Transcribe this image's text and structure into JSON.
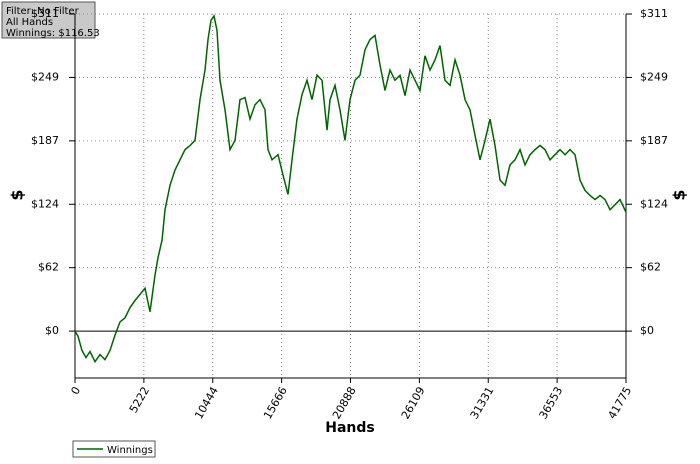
{
  "chart_data": {
    "type": "line",
    "info_box": [
      "Filter: No Filter",
      "All Hands",
      "Winnings: $116.53"
    ],
    "xlabel": "Hands",
    "ylabel": "$",
    "xlim": [
      0,
      41775
    ],
    "xticks": [
      0,
      5222,
      10444,
      15666,
      20888,
      26109,
      31331,
      36553,
      41775
    ],
    "ylim": [
      -46,
      311
    ],
    "yticks": [
      {
        "value": 0,
        "label": "$0"
      },
      {
        "value": 62.2,
        "label": "$62"
      },
      {
        "value": 124.4,
        "label": "$124"
      },
      {
        "value": 186.6,
        "label": "$187"
      },
      {
        "value": 248.8,
        "label": "$249"
      },
      {
        "value": 311,
        "label": "$311"
      }
    ],
    "grid": true,
    "legend": "bottom-left",
    "x": [
      0,
      227,
      531,
      834,
      1137,
      1516,
      1896,
      2275,
      2654,
      3033,
      3412,
      3791,
      4170,
      4549,
      4929,
      5308,
      5687,
      6066,
      6293,
      6596,
      6824,
      7203,
      7582,
      7961,
      8340,
      8719,
      9098,
      9478,
      9857,
      10084,
      10312,
      10539,
      10766,
      10994,
      11373,
      11752,
      12131,
      12510,
      12889,
      13269,
      13648,
      14027,
      14406,
      14633,
      14937,
      15392,
      15771,
      16150,
      16453,
      16832,
      17212,
      17591,
      17970,
      18348,
      18727,
      19107,
      19334,
      19713,
      20092,
      20471,
      20851,
      21230,
      21609,
      21988,
      22367,
      22746,
      23125,
      23504,
      23883,
      24262,
      24642,
      25021,
      25400,
      25779,
      26158,
      26537,
      26916,
      27295,
      27674,
      28053,
      28433,
      28812,
      29191,
      29570,
      29949,
      30328,
      30707,
      31086,
      31465,
      31844,
      32224,
      32603,
      32982,
      33361,
      33740,
      34119,
      34498,
      34877,
      35256,
      35635,
      36015,
      36394,
      36773,
      37152,
      37531,
      37910,
      38289,
      38668,
      39047,
      39426,
      39806,
      40185,
      40564,
      40943,
      41322,
      41775
    ],
    "series": [
      {
        "name": "Winnings",
        "color": "#006400",
        "values": [
          0,
          -5,
          -19,
          -26,
          -20,
          -30,
          -23,
          -28,
          -19,
          -4,
          9,
          13,
          23,
          30,
          36,
          42,
          19,
          55,
          72,
          89,
          119,
          143,
          158,
          168,
          178,
          182,
          187,
          227,
          256,
          286,
          305,
          309,
          295,
          246,
          217,
          178,
          187,
          227,
          229,
          208,
          222,
          227,
          217,
          178,
          168,
          173,
          153,
          134,
          168,
          208,
          232,
          246,
          227,
          251,
          246,
          197,
          227,
          241,
          217,
          187,
          227,
          246,
          251,
          276,
          286,
          290,
          261,
          236,
          256,
          246,
          251,
          231,
          256,
          246,
          236,
          270,
          256,
          266,
          280,
          246,
          241,
          266,
          251,
          227,
          217,
          192,
          168,
          187,
          208,
          182,
          148,
          143,
          163,
          168,
          178,
          163,
          173,
          178,
          182,
          178,
          168,
          173,
          178,
          173,
          178,
          173,
          148,
          138,
          133,
          129,
          133,
          129,
          119,
          124,
          129,
          116.53
        ]
      }
    ]
  }
}
